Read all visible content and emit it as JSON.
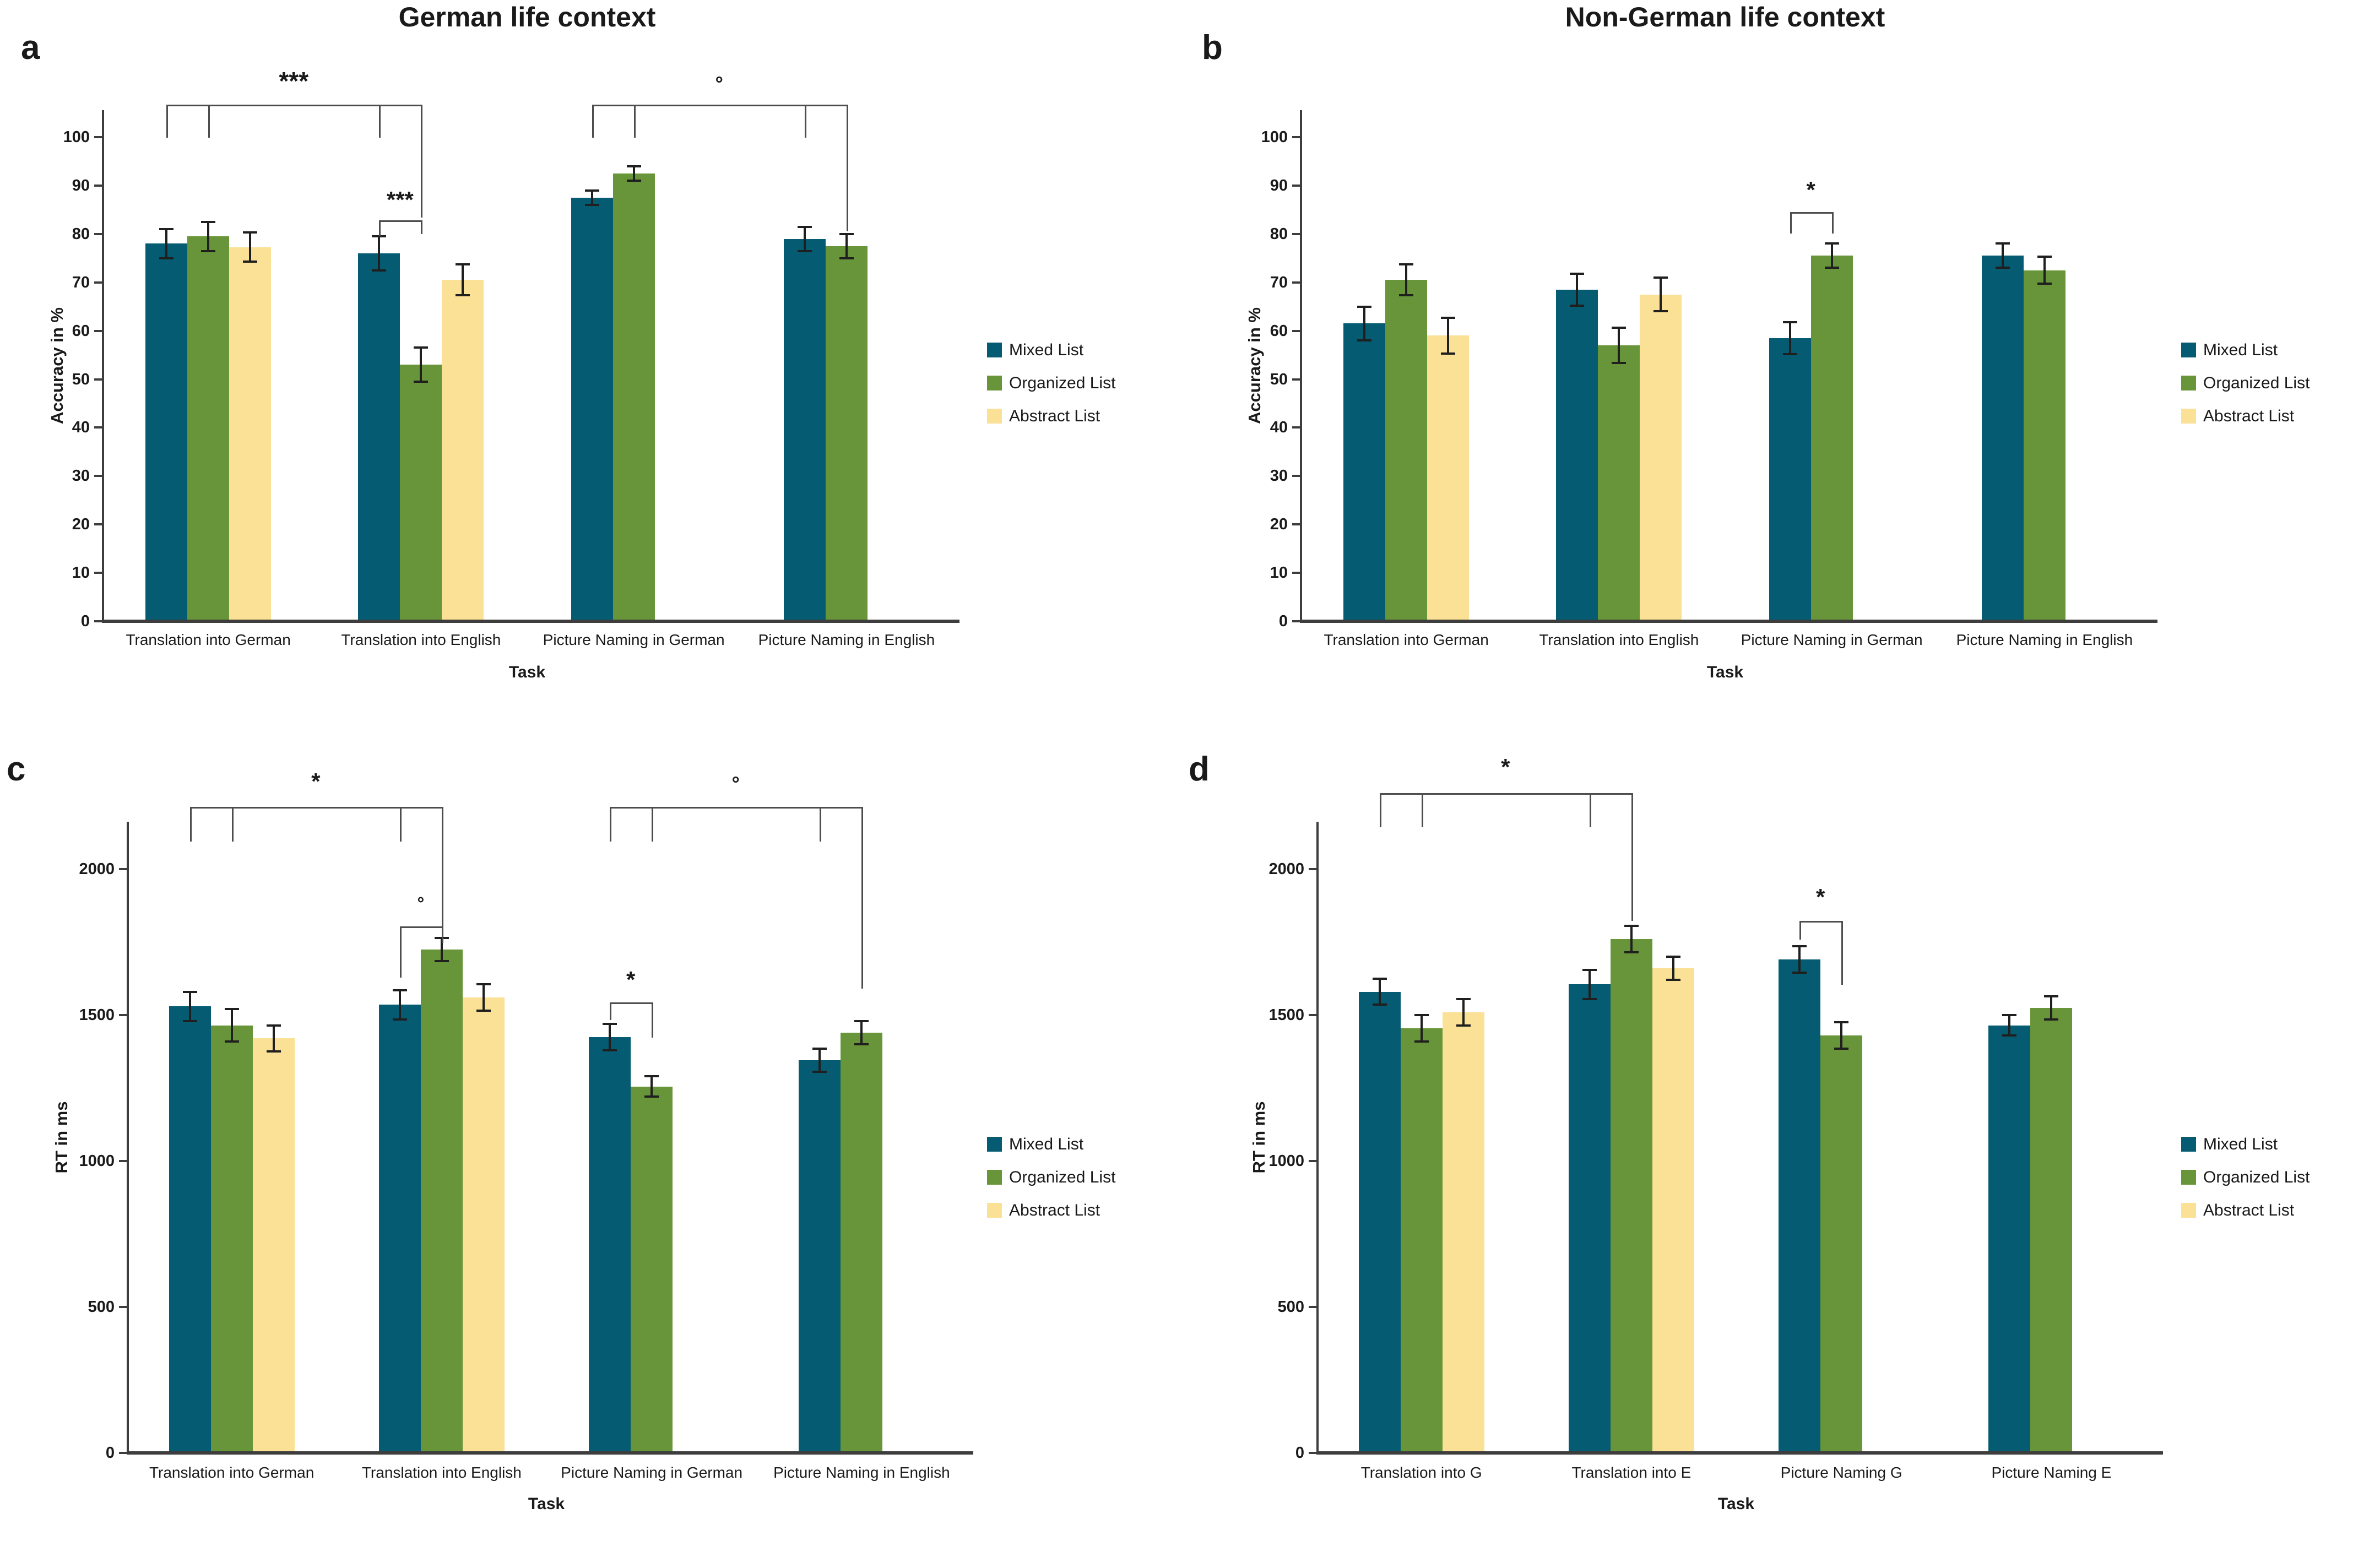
{
  "figure_titles": {
    "left": "German life context",
    "right": "Non-German life context"
  },
  "colors": {
    "mixed": "#055C72",
    "organized": "#689539",
    "abstract": "#FAE195",
    "axis": "#3D3D3D",
    "error_bar": "#1F1F1F",
    "bracket": "#4D4D4D",
    "text": "#1A1A1A"
  },
  "legend": {
    "items": [
      {
        "label": "Mixed List",
        "color_key": "mixed"
      },
      {
        "label": "Organized List",
        "color_key": "organized"
      },
      {
        "label": "Abstract List",
        "color_key": "abstract"
      }
    ]
  },
  "chart_data": [
    {
      "panel": "a",
      "type": "bar",
      "title": "German life context",
      "ylabel": "Accuracy in %",
      "xlabel": "Task",
      "ylim": [
        0,
        100
      ],
      "yticks": [
        0,
        10,
        20,
        30,
        40,
        50,
        60,
        70,
        80,
        90,
        100
      ],
      "categories": [
        "Translation into German",
        "Translation into English",
        "Picture Naming in German",
        "Picture Naming in English"
      ],
      "series": [
        {
          "name": "Mixed List",
          "values": [
            78,
            76,
            87.5,
            79
          ],
          "errors": [
            3,
            3.5,
            1.5,
            2.5
          ]
        },
        {
          "name": "Organized List",
          "values": [
            79.5,
            53,
            92.5,
            77.5
          ],
          "errors": [
            3,
            3.5,
            1.5,
            2.5
          ]
        },
        {
          "name": "Abstract List",
          "values": [
            77.3,
            70.5,
            null,
            null
          ],
          "errors": [
            3,
            3.2,
            null,
            null
          ]
        }
      ],
      "significance": [
        {
          "label": "***",
          "note": "Translation into German vs Translation into English"
        },
        {
          "label": "***",
          "note": "Mixed vs Organized within Translation into English"
        },
        {
          "label": "°",
          "note": "Picture Naming in German vs Picture Naming in English"
        }
      ]
    },
    {
      "panel": "b",
      "type": "bar",
      "title": "Non-German life context",
      "ylabel": "Accuracy in %",
      "xlabel": "Task",
      "ylim": [
        0,
        100
      ],
      "yticks": [
        0,
        10,
        20,
        30,
        40,
        50,
        60,
        70,
        80,
        90,
        100
      ],
      "categories": [
        "Translation into German",
        "Translation into English",
        "Picture Naming in German",
        "Picture Naming in English"
      ],
      "series": [
        {
          "name": "Mixed List",
          "values": [
            61.5,
            68.5,
            58.5,
            75.5
          ],
          "errors": [
            3.5,
            3.3,
            3.3,
            2.5
          ]
        },
        {
          "name": "Organized List",
          "values": [
            70.5,
            57,
            75.5,
            72.5
          ],
          "errors": [
            3.2,
            3.6,
            2.5,
            2.8
          ]
        },
        {
          "name": "Abstract List",
          "values": [
            59,
            67.5,
            null,
            null
          ],
          "errors": [
            3.7,
            3.5,
            null,
            null
          ]
        }
      ],
      "significance": [
        {
          "label": "*",
          "note": "Mixed vs Organized within Picture Naming in German"
        }
      ]
    },
    {
      "panel": "c",
      "type": "bar",
      "title": null,
      "ylabel": "RT in ms",
      "xlabel": "Task",
      "ylim": [
        0,
        2000
      ],
      "yticks": [
        0,
        500,
        1000,
        1500,
        2000
      ],
      "categories": [
        "Translation into German",
        "Translation into English",
        "Picture Naming in German",
        "Picture Naming in English"
      ],
      "series": [
        {
          "name": "Mixed List",
          "values": [
            1530,
            1535,
            1425,
            1345
          ],
          "errors": [
            50,
            50,
            45,
            40
          ]
        },
        {
          "name": "Organized List",
          "values": [
            1465,
            1725,
            1255,
            1440
          ],
          "errors": [
            55,
            40,
            35,
            40
          ]
        },
        {
          "name": "Abstract List",
          "values": [
            1420,
            1560,
            null,
            null
          ],
          "errors": [
            45,
            45,
            null,
            null
          ]
        }
      ],
      "significance": [
        {
          "label": "*",
          "note": "Translation into German vs Translation into English"
        },
        {
          "label": "°",
          "note": "Mixed vs Organized within Translation into English"
        },
        {
          "label": "°",
          "note": "Picture Naming in German vs Picture Naming in English"
        },
        {
          "label": "*",
          "note": "Mixed vs Organized within Picture Naming in German"
        }
      ]
    },
    {
      "panel": "d",
      "type": "bar",
      "title": null,
      "ylabel": "RT in ms",
      "xlabel": "Task",
      "ylim": [
        0,
        2000
      ],
      "yticks": [
        0,
        500,
        1000,
        1500,
        2000
      ],
      "categories": [
        "Translation into G",
        "Translation into E",
        "Picture Naming G",
        "Picture Naming E"
      ],
      "series": [
        {
          "name": "Mixed List",
          "values": [
            1580,
            1605,
            1690,
            1465
          ],
          "errors": [
            45,
            50,
            45,
            35
          ]
        },
        {
          "name": "Organized List",
          "values": [
            1455,
            1760,
            1430,
            1525
          ],
          "errors": [
            45,
            45,
            45,
            40
          ]
        },
        {
          "name": "Abstract List",
          "values": [
            1510,
            1660,
            null,
            null
          ],
          "errors": [
            45,
            40,
            null,
            null
          ]
        }
      ],
      "significance": [
        {
          "label": "*",
          "note": "Translation into G vs Translation into E"
        },
        {
          "label": "*",
          "note": "Mixed vs Organized within Picture Naming G"
        }
      ]
    }
  ]
}
